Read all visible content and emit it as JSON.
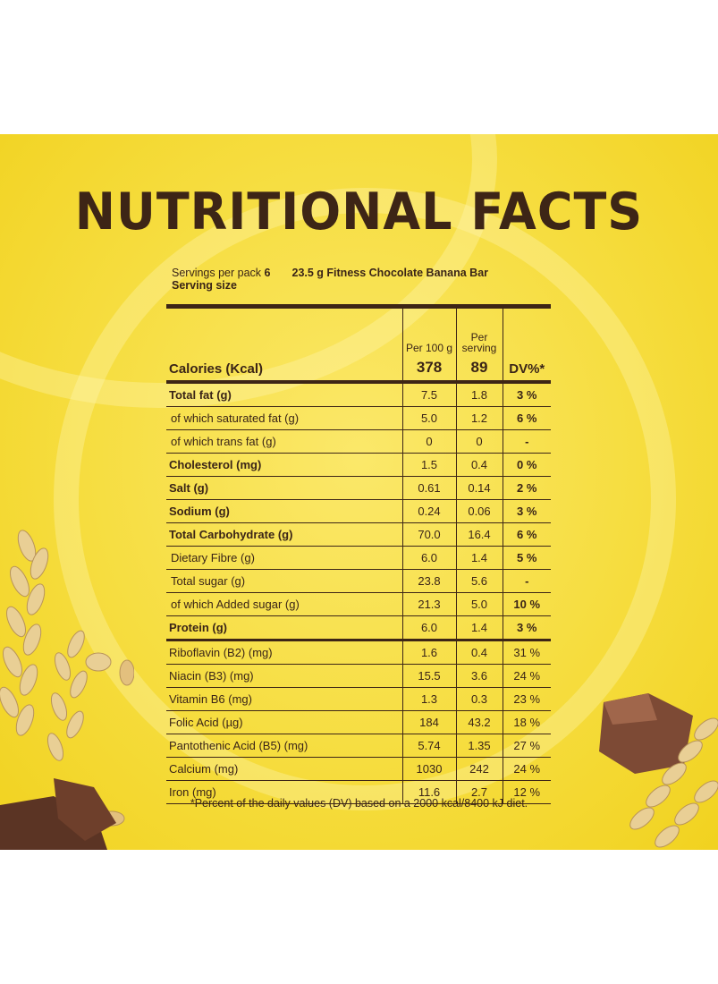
{
  "title": "NUTRITIONAL FACTS",
  "servings": {
    "label": "Servings per pack",
    "count": "6",
    "serving_size_label": "Serving size",
    "serving_size_value": "23.5 g Fitness Chocolate Banana Bar"
  },
  "header": {
    "col_per100": "Per 100 g",
    "col_per_serving_line1": "Per",
    "col_per_serving_line2": "serving",
    "col_dv": "DV%*",
    "calories_label": "Calories (Kcal)",
    "calories_per100": "378",
    "calories_per_serving": "89"
  },
  "rows": [
    {
      "label": "Total fat (g)",
      "per100": "7.5",
      "serving": "1.8",
      "dv": "3 %"
    },
    {
      "label": "of which saturated fat (g)",
      "per100": "5.0",
      "serving": "1.2",
      "dv": "6 %"
    },
    {
      "label": "of which trans fat (g)",
      "per100": "0",
      "serving": "0",
      "dv": "-"
    },
    {
      "label": "Cholesterol (mg)",
      "per100": "1.5",
      "serving": "0.4",
      "dv": "0 %"
    },
    {
      "label": "Salt (g)",
      "per100": "0.61",
      "serving": "0.14",
      "dv": "2 %"
    },
    {
      "label": "Sodium (g)",
      "per100": "0.24",
      "serving": "0.06",
      "dv": "3 %"
    },
    {
      "label": "Total Carbohydrate (g)",
      "per100": "70.0",
      "serving": "16.4",
      "dv": "6 %"
    },
    {
      "label": "Dietary Fibre (g)",
      "per100": "6.0",
      "serving": "1.4",
      "dv": "5 %"
    },
    {
      "label": "Total sugar (g)",
      "per100": "23.8",
      "serving": "5.6",
      "dv": "-"
    },
    {
      "label": "of which Added sugar (g)",
      "per100": "21.3",
      "serving": "5.0",
      "dv": "10 %"
    },
    {
      "label": "Protein (g)",
      "per100": "6.0",
      "serving": "1.4",
      "dv": "3 %"
    },
    {
      "label": "Riboflavin (B2) (mg)",
      "per100": "1.6",
      "serving": "0.4",
      "dv": "31 %"
    },
    {
      "label": "Niacin (B3) (mg)",
      "per100": "15.5",
      "serving": "3.6",
      "dv": "24 %"
    },
    {
      "label": "Vitamin B6 (mg)",
      "per100": "1.3",
      "serving": "0.3",
      "dv": "23 %"
    },
    {
      "label": "Folic Acid (µg)",
      "per100": "184",
      "serving": "43.2",
      "dv": "18 %"
    },
    {
      "label": "Pantothenic Acid (B5) (mg)",
      "per100": "5.74",
      "serving": "1.35",
      "dv": "27 %"
    },
    {
      "label": "Calcium (mg)",
      "per100": "1030",
      "serving": "242",
      "dv": "24 %"
    },
    {
      "label": "Iron (mg)",
      "per100": "11.6",
      "serving": "2.7",
      "dv": "12 %"
    }
  ],
  "footnote": "*Percent of the daily values (DV) based on a 2000 kcal/8400 kJ diet.",
  "colors": {
    "background": "#f6dd3f",
    "text": "#3d2516"
  }
}
